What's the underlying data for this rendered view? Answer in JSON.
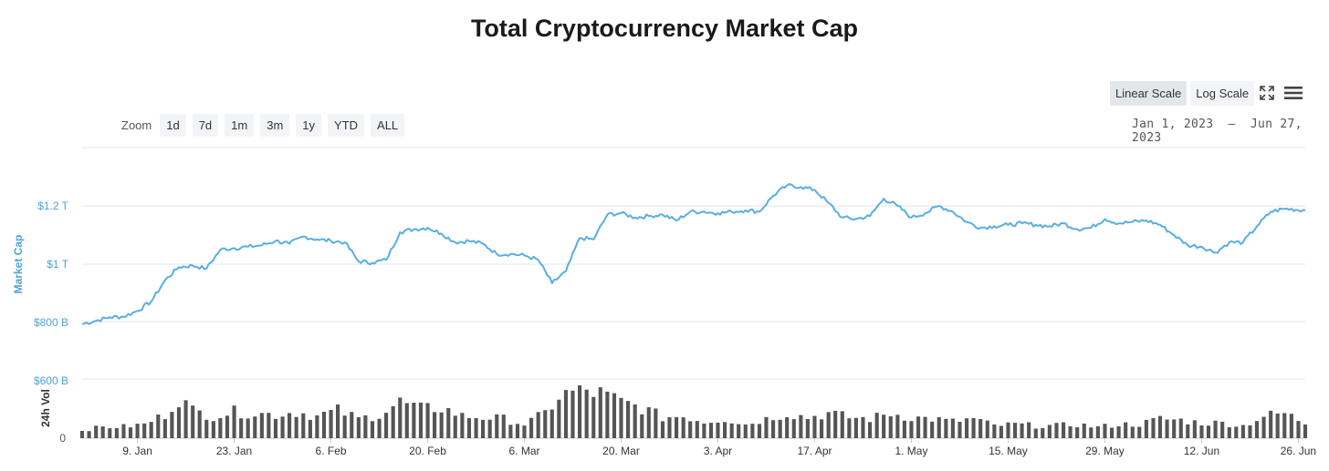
{
  "title": "Total Cryptocurrency Market Cap",
  "scale_buttons": {
    "linear": "Linear Scale",
    "log": "Log Scale"
  },
  "zoom": {
    "label": "Zoom",
    "buttons": [
      "1d",
      "7d",
      "1m",
      "3m",
      "1y",
      "YTD",
      "ALL"
    ]
  },
  "range": {
    "from": "Jan 1, 2023",
    "separator": "—",
    "to": "Jun 27, 2023"
  },
  "icons": {
    "fullscreen": "fullscreen-icon",
    "menu": "hamburger-menu-icon"
  },
  "colors": {
    "line": "#5aaee0",
    "volume": "#555555",
    "axis_label": "#4ea3d8"
  },
  "chart_data": {
    "type": "line",
    "title": "Total Cryptocurrency Market Cap",
    "ylabel": "Market Cap",
    "y2label": "24h Vol",
    "y_ticks": [
      {
        "value": 1200000000000.0,
        "label": "$1.2 T"
      },
      {
        "value": 1000000000000.0,
        "label": "$1 T"
      },
      {
        "value": 800000000000.0,
        "label": "$800 B"
      },
      {
        "value": 600000000000.0,
        "label": "$600 B"
      }
    ],
    "vol_tick_label": "0",
    "x_ticks": [
      {
        "date": "2023-01-09",
        "label": "9. Jan"
      },
      {
        "date": "2023-01-23",
        "label": "23. Jan"
      },
      {
        "date": "2023-02-06",
        "label": "6. Feb"
      },
      {
        "date": "2023-02-20",
        "label": "20. Feb"
      },
      {
        "date": "2023-03-06",
        "label": "6. Mar"
      },
      {
        "date": "2023-03-20",
        "label": "20. Mar"
      },
      {
        "date": "2023-04-03",
        "label": "3. Apr"
      },
      {
        "date": "2023-04-17",
        "label": "17. Apr"
      },
      {
        "date": "2023-05-01",
        "label": "1. May"
      },
      {
        "date": "2023-05-15",
        "label": "15. May"
      },
      {
        "date": "2023-05-29",
        "label": "29. May"
      },
      {
        "date": "2023-06-12",
        "label": "12. Jun"
      },
      {
        "date": "2023-06-26",
        "label": "26. Jun"
      }
    ],
    "series": [
      {
        "name": "Market Cap",
        "unit": "billion USD",
        "points": [
          [
            "2023-01-01",
            795
          ],
          [
            "2023-01-03",
            806
          ],
          [
            "2023-01-05",
            818
          ],
          [
            "2023-01-07",
            820
          ],
          [
            "2023-01-09",
            840
          ],
          [
            "2023-01-11",
            872
          ],
          [
            "2023-01-13",
            945
          ],
          [
            "2023-01-15",
            990
          ],
          [
            "2023-01-17",
            995
          ],
          [
            "2023-01-19",
            985
          ],
          [
            "2023-01-21",
            1050
          ],
          [
            "2023-01-23",
            1055
          ],
          [
            "2023-01-25",
            1060
          ],
          [
            "2023-01-27",
            1065
          ],
          [
            "2023-01-29",
            1080
          ],
          [
            "2023-01-31",
            1070
          ],
          [
            "2023-02-02",
            1095
          ],
          [
            "2023-02-04",
            1085
          ],
          [
            "2023-02-06",
            1080
          ],
          [
            "2023-02-08",
            1075
          ],
          [
            "2023-02-10",
            1010
          ],
          [
            "2023-02-12",
            1005
          ],
          [
            "2023-02-14",
            1015
          ],
          [
            "2023-02-16",
            1110
          ],
          [
            "2023-02-18",
            1120
          ],
          [
            "2023-02-20",
            1125
          ],
          [
            "2023-02-22",
            1105
          ],
          [
            "2023-02-24",
            1075
          ],
          [
            "2023-02-26",
            1080
          ],
          [
            "2023-02-28",
            1070
          ],
          [
            "2023-03-02",
            1035
          ],
          [
            "2023-03-04",
            1035
          ],
          [
            "2023-03-06",
            1030
          ],
          [
            "2023-03-08",
            1015
          ],
          [
            "2023-03-10",
            935
          ],
          [
            "2023-03-12",
            975
          ],
          [
            "2023-03-14",
            1090
          ],
          [
            "2023-03-16",
            1085
          ],
          [
            "2023-03-18",
            1170
          ],
          [
            "2023-03-20",
            1175
          ],
          [
            "2023-03-22",
            1160
          ],
          [
            "2023-03-24",
            1165
          ],
          [
            "2023-03-26",
            1170
          ],
          [
            "2023-03-28",
            1150
          ],
          [
            "2023-03-30",
            1180
          ],
          [
            "2023-04-01",
            1180
          ],
          [
            "2023-04-03",
            1175
          ],
          [
            "2023-04-05",
            1180
          ],
          [
            "2023-04-07",
            1185
          ],
          [
            "2023-04-09",
            1180
          ],
          [
            "2023-04-11",
            1235
          ],
          [
            "2023-04-13",
            1270
          ],
          [
            "2023-04-15",
            1265
          ],
          [
            "2023-04-17",
            1255
          ],
          [
            "2023-04-19",
            1210
          ],
          [
            "2023-04-21",
            1160
          ],
          [
            "2023-04-23",
            1155
          ],
          [
            "2023-04-25",
            1165
          ],
          [
            "2023-04-27",
            1225
          ],
          [
            "2023-04-29",
            1200
          ],
          [
            "2023-05-01",
            1160
          ],
          [
            "2023-05-03",
            1175
          ],
          [
            "2023-05-05",
            1200
          ],
          [
            "2023-05-07",
            1180
          ],
          [
            "2023-05-09",
            1145
          ],
          [
            "2023-05-11",
            1125
          ],
          [
            "2023-05-13",
            1130
          ],
          [
            "2023-05-15",
            1135
          ],
          [
            "2023-05-17",
            1140
          ],
          [
            "2023-05-19",
            1135
          ],
          [
            "2023-05-21",
            1130
          ],
          [
            "2023-05-23",
            1140
          ],
          [
            "2023-05-25",
            1120
          ],
          [
            "2023-05-27",
            1125
          ],
          [
            "2023-05-29",
            1155
          ],
          [
            "2023-05-31",
            1140
          ],
          [
            "2023-06-02",
            1145
          ],
          [
            "2023-06-04",
            1150
          ],
          [
            "2023-06-06",
            1135
          ],
          [
            "2023-06-08",
            1100
          ],
          [
            "2023-06-10",
            1065
          ],
          [
            "2023-06-12",
            1060
          ],
          [
            "2023-06-14",
            1040
          ],
          [
            "2023-06-16",
            1075
          ],
          [
            "2023-06-18",
            1075
          ],
          [
            "2023-06-20",
            1130
          ],
          [
            "2023-06-22",
            1180
          ],
          [
            "2023-06-24",
            1190
          ],
          [
            "2023-06-27",
            1185
          ]
        ]
      },
      {
        "name": "24h Vol",
        "type": "bar",
        "unit": "billion USD",
        "points": [
          [
            "2023-01-01",
            30
          ],
          [
            "2023-01-04",
            40
          ],
          [
            "2023-01-07",
            42
          ],
          [
            "2023-01-10",
            50
          ],
          [
            "2023-01-13",
            85
          ],
          [
            "2023-01-15",
            145
          ],
          [
            "2023-01-17",
            100
          ],
          [
            "2023-01-20",
            80
          ],
          [
            "2023-01-23",
            95
          ],
          [
            "2023-01-26",
            90
          ],
          [
            "2023-01-29",
            85
          ],
          [
            "2023-02-01",
            95
          ],
          [
            "2023-02-04",
            80
          ],
          [
            "2023-02-07",
            100
          ],
          [
            "2023-02-10",
            70
          ],
          [
            "2023-02-13",
            85
          ],
          [
            "2023-02-16",
            130
          ],
          [
            "2023-02-19",
            105
          ],
          [
            "2023-02-22",
            110
          ],
          [
            "2023-02-25",
            80
          ],
          [
            "2023-02-28",
            75
          ],
          [
            "2023-03-03",
            70
          ],
          [
            "2023-03-06",
            50
          ],
          [
            "2023-03-09",
            90
          ],
          [
            "2023-03-11",
            150
          ],
          [
            "2023-03-14",
            175
          ],
          [
            "2023-03-17",
            160
          ],
          [
            "2023-03-20",
            130
          ],
          [
            "2023-03-23",
            110
          ],
          [
            "2023-03-26",
            75
          ],
          [
            "2023-03-29",
            80
          ],
          [
            "2023-04-01",
            60
          ],
          [
            "2023-04-04",
            70
          ],
          [
            "2023-04-07",
            50
          ],
          [
            "2023-04-10",
            70
          ],
          [
            "2023-04-13",
            90
          ],
          [
            "2023-04-16",
            75
          ],
          [
            "2023-04-19",
            90
          ],
          [
            "2023-04-22",
            75
          ],
          [
            "2023-04-25",
            70
          ],
          [
            "2023-04-28",
            90
          ],
          [
            "2023-05-01",
            75
          ],
          [
            "2023-05-04",
            70
          ],
          [
            "2023-05-07",
            60
          ],
          [
            "2023-05-10",
            70
          ],
          [
            "2023-05-13",
            45
          ],
          [
            "2023-05-16",
            50
          ],
          [
            "2023-05-19",
            45
          ],
          [
            "2023-05-22",
            45
          ],
          [
            "2023-05-25",
            50
          ],
          [
            "2023-05-28",
            40
          ],
          [
            "2023-05-31",
            50
          ],
          [
            "2023-06-03",
            50
          ],
          [
            "2023-06-06",
            70
          ],
          [
            "2023-06-09",
            65
          ],
          [
            "2023-06-12",
            55
          ],
          [
            "2023-06-15",
            55
          ],
          [
            "2023-06-18",
            45
          ],
          [
            "2023-06-21",
            80
          ],
          [
            "2023-06-24",
            90
          ],
          [
            "2023-06-27",
            55
          ]
        ]
      }
    ]
  }
}
